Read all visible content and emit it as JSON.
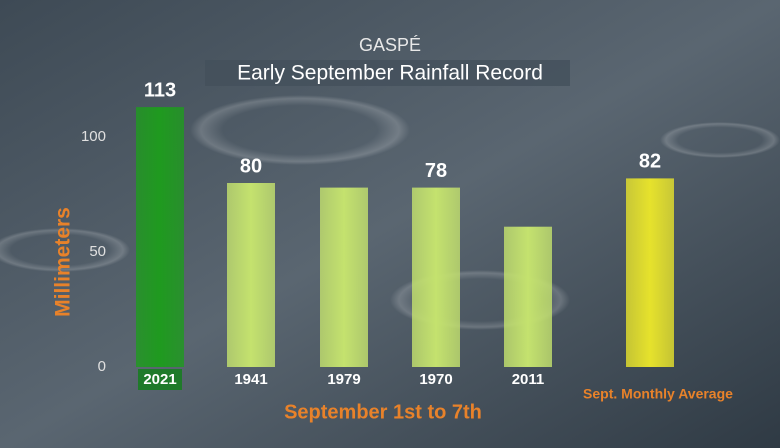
{
  "chart_data": {
    "type": "bar",
    "title": "GASPÉ",
    "subtitle": "Early September Rainfall Record",
    "x_label": "September 1st to 7th",
    "y_label": "Millimeters",
    "categories": [
      "2021",
      "1941",
      "1979",
      "1970",
      "2011",
      "Sept. Monthly Average"
    ],
    "values": [
      113,
      80,
      78,
      78,
      61,
      82
    ],
    "value_labels": [
      "113",
      "80",
      null,
      "78",
      null,
      "82"
    ],
    "colors": [
      "#1f9a1f",
      "#c4e26e",
      "#c4e26e",
      "#c4e26e",
      "#c4e26e",
      "#e6e22c"
    ],
    "ylim": [
      0,
      120
    ],
    "yticks": [
      0,
      50,
      100
    ],
    "grid": false
  }
}
